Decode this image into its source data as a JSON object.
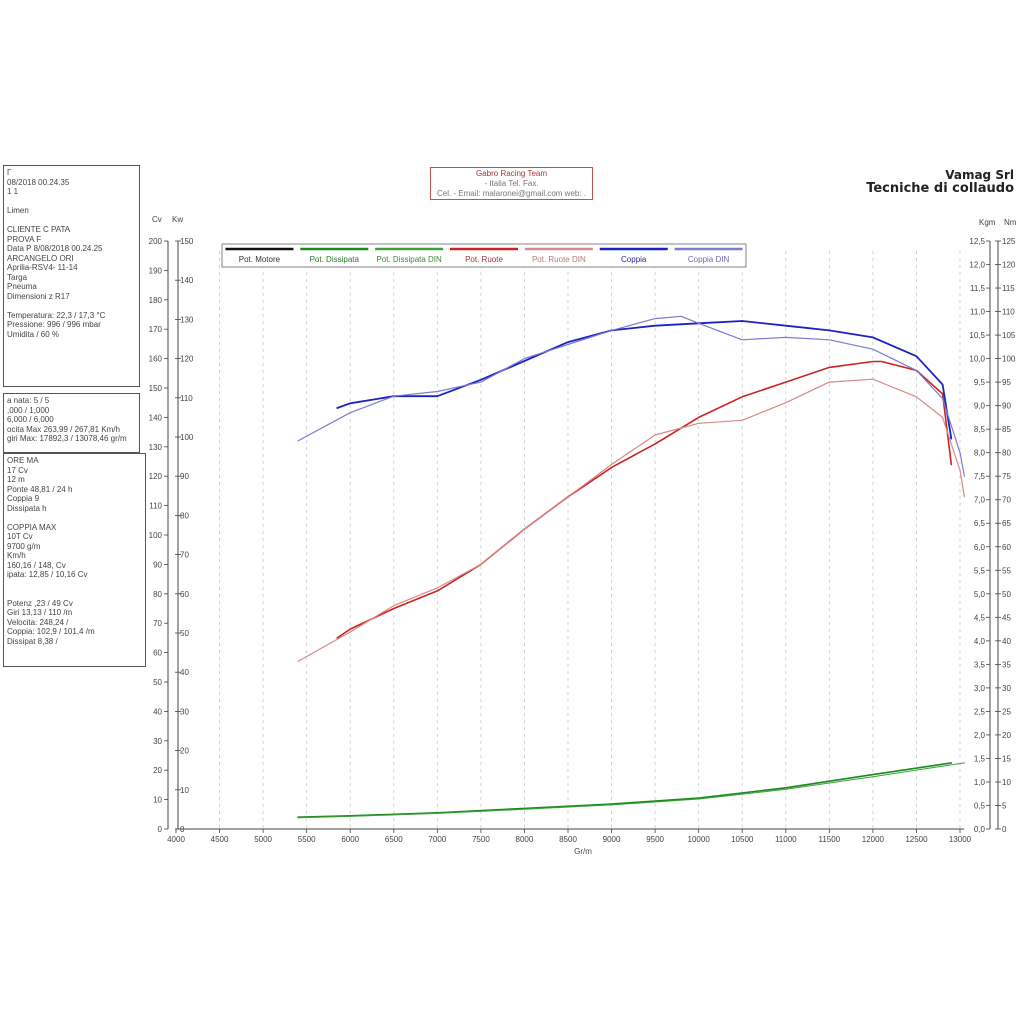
{
  "info": {
    "box1": [
      "Г",
      "08/2018 00.24.35",
      "1 1",
      "",
      "Limen",
      "",
      "CLIENTE C     PATA",
      "PROVA F",
      "Data P        8/08/2018 00.24.25",
      "ARCANGELO ORI",
      "Aprilia-RSV4- 11-14",
      "Targa",
      "Pneuma",
      "Dimensioni  z       R17",
      "",
      "Temperatura: 22,3 / 17,3 °C",
      "Pressione: 996 / 996 mbar",
      "Umidita   / 60 %"
    ],
    "box2": [
      "a      nata: 5 / 5",
      "             ,000 / 1,000",
      "          6,000 / 6,000",
      "ocita Max 263,99 / 267,81 Km/h",
      "giri Max: 17892,3 / 13078,46 gr/m"
    ],
    "box3": [
      "         ORE MA",
      "              17  Cv",
      "         12        m",
      "Ponte  48,81 / 24       h",
      "Coppia        9",
      "Dissipata           h",
      "",
      "COPPIA MAX",
      "              10T         Cv",
      "            9700        g/m",
      "                   Km/h",
      "         160,16 / 148,   Cv",
      "  ipata: 12,85 / 10,16 Cv",
      "",
      "",
      "Potenz       ,23 /       49 Cv",
      "Giri 13,13 / 110        /m",
      "Velocita: 248,24 /          ",
      "Coppia: 102,9 / 101,4   /m",
      "Dissipat       8,38 /       "
    ]
  },
  "header": {
    "line1": "Gabro Racing Team",
    "line2": "- Italia Tel.    Fax.",
    "line3": "Cel.  - Email: malaronei@gmail.com web: ."
  },
  "company": {
    "name": "Vamag Srl",
    "subtitle": "Tecniche di collaudo"
  },
  "chart_data": {
    "type": "line",
    "xlabel": "Gr/m",
    "xlim": [
      4000,
      13000
    ],
    "x_ticks": [
      4000,
      4500,
      5000,
      5500,
      6000,
      6500,
      7000,
      7500,
      8000,
      8500,
      9000,
      9500,
      10000,
      10500,
      11000,
      11500,
      12000,
      12500,
      13000
    ],
    "axes": {
      "cv": {
        "label": "Cv",
        "range": [
          0,
          200
        ],
        "ticks": [
          0,
          10,
          20,
          30,
          40,
          50,
          60,
          70,
          80,
          90,
          100,
          110,
          120,
          130,
          140,
          150,
          160,
          170,
          180,
          190,
          200
        ]
      },
      "kw": {
        "label": "Kw",
        "range": [
          0,
          150
        ],
        "ticks": [
          0,
          10,
          20,
          30,
          40,
          50,
          60,
          70,
          80,
          90,
          100,
          110,
          120,
          130,
          140,
          150
        ]
      },
      "kgm": {
        "label": "Kgm",
        "range": [
          0,
          12.5
        ],
        "ticks": [
          0.0,
          0.5,
          1.0,
          1.5,
          2.0,
          2.5,
          3.0,
          3.5,
          4.0,
          4.5,
          5.0,
          5.5,
          6.0,
          6.5,
          7.0,
          7.5,
          8.0,
          8.5,
          9.0,
          9.5,
          10.0,
          10.5,
          11.0,
          11.5,
          12.0,
          12.5
        ]
      },
      "nm": {
        "label": "Nm",
        "range": [
          0,
          125
        ],
        "ticks": [
          0,
          5,
          10,
          15,
          20,
          25,
          30,
          35,
          40,
          45,
          50,
          55,
          60,
          65,
          70,
          75,
          80,
          85,
          90,
          95,
          100,
          105,
          110,
          115,
          120,
          125
        ]
      }
    },
    "legend": [
      {
        "name": "Pot. Motore",
        "color": "#111111",
        "text_color": "#333333"
      },
      {
        "name": "Pot. Dissipata",
        "color": "#1a8a1a",
        "text_color": "#2a7a2a"
      },
      {
        "name": "Pot. Dissipata DIN",
        "color": "#3aa03a",
        "text_color": "#3a8a3a"
      },
      {
        "name": "Pot. Ruote",
        "color": "#cc2222",
        "text_color": "#aa3333"
      },
      {
        "name": "Pot. Ruote DIN",
        "color": "#d88888",
        "text_color": "#bb7777"
      },
      {
        "name": "Coppia",
        "color": "#1a22c0",
        "text_color": "#2a2aa0"
      },
      {
        "name": "Coppia DIN",
        "color": "#7a7ad0",
        "text_color": "#6a6ab0"
      }
    ],
    "series": [
      {
        "name": "Pot. Ruote",
        "axis": "cv",
        "color": "#cc2222",
        "width": 1.6,
        "x": [
          5850,
          6000,
          6500,
          7000,
          7500,
          8000,
          8500,
          9000,
          9500,
          10000,
          10500,
          11000,
          11500,
          12000,
          12100,
          12500,
          12800,
          12900
        ],
        "y": [
          65,
          68,
          75,
          81,
          90,
          102,
          113,
          123,
          131,
          140,
          147,
          152,
          157,
          159,
          159,
          156,
          148,
          124
        ]
      },
      {
        "name": "Pot. Ruote DIN",
        "axis": "cv",
        "color": "#d88888",
        "width": 1.2,
        "x": [
          5400,
          6000,
          6500,
          7000,
          7500,
          8000,
          8500,
          9000,
          9500,
          10000,
          10500,
          11000,
          11500,
          12000,
          12500,
          12800,
          13000,
          13050
        ],
        "y": [
          57,
          67,
          76,
          82,
          90,
          102,
          113,
          124,
          134,
          138,
          139,
          145,
          152,
          153,
          147,
          140,
          122,
          113
        ]
      },
      {
        "name": "Coppia",
        "axis": "kgm",
        "color": "#1a22c0",
        "width": 1.8,
        "x": [
          5850,
          6000,
          6500,
          7000,
          7500,
          8000,
          8500,
          9000,
          9500,
          10000,
          10500,
          11000,
          11500,
          12000,
          12500,
          12800,
          12900
        ],
        "y": [
          8.95,
          9.05,
          9.2,
          9.2,
          9.55,
          9.95,
          10.35,
          10.6,
          10.7,
          10.75,
          10.8,
          10.7,
          10.6,
          10.45,
          10.05,
          9.45,
          8.3
        ]
      },
      {
        "name": "Coppia DIN",
        "axis": "kgm",
        "color": "#7a7ad0",
        "width": 1.2,
        "x": [
          5400,
          6000,
          6500,
          7000,
          7500,
          8000,
          8500,
          9000,
          9500,
          9800,
          10000,
          10500,
          11000,
          11500,
          12000,
          12500,
          12800,
          13000,
          13050
        ],
        "y": [
          8.25,
          8.85,
          9.2,
          9.3,
          9.5,
          10.0,
          10.3,
          10.6,
          10.85,
          10.9,
          10.75,
          10.4,
          10.45,
          10.4,
          10.2,
          9.75,
          9.15,
          8.0,
          7.5
        ]
      },
      {
        "name": "Pot. Dissipata",
        "axis": "cv",
        "color": "#1a8a1a",
        "width": 1.6,
        "x": [
          5400,
          6000,
          7000,
          8000,
          9000,
          10000,
          11000,
          12000,
          12900
        ],
        "y": [
          4,
          4.5,
          5.5,
          7,
          8.5,
          10.5,
          14,
          18.5,
          22.5
        ]
      },
      {
        "name": "Pot. Dissipata DIN",
        "axis": "cv",
        "color": "#3aa03a",
        "width": 1.0,
        "x": [
          5400,
          6000,
          7000,
          8000,
          9000,
          10000,
          11000,
          12000,
          13050
        ],
        "y": [
          3.8,
          4.3,
          5.3,
          6.7,
          8.2,
          10.2,
          13.5,
          17.8,
          22.5
        ]
      }
    ]
  }
}
